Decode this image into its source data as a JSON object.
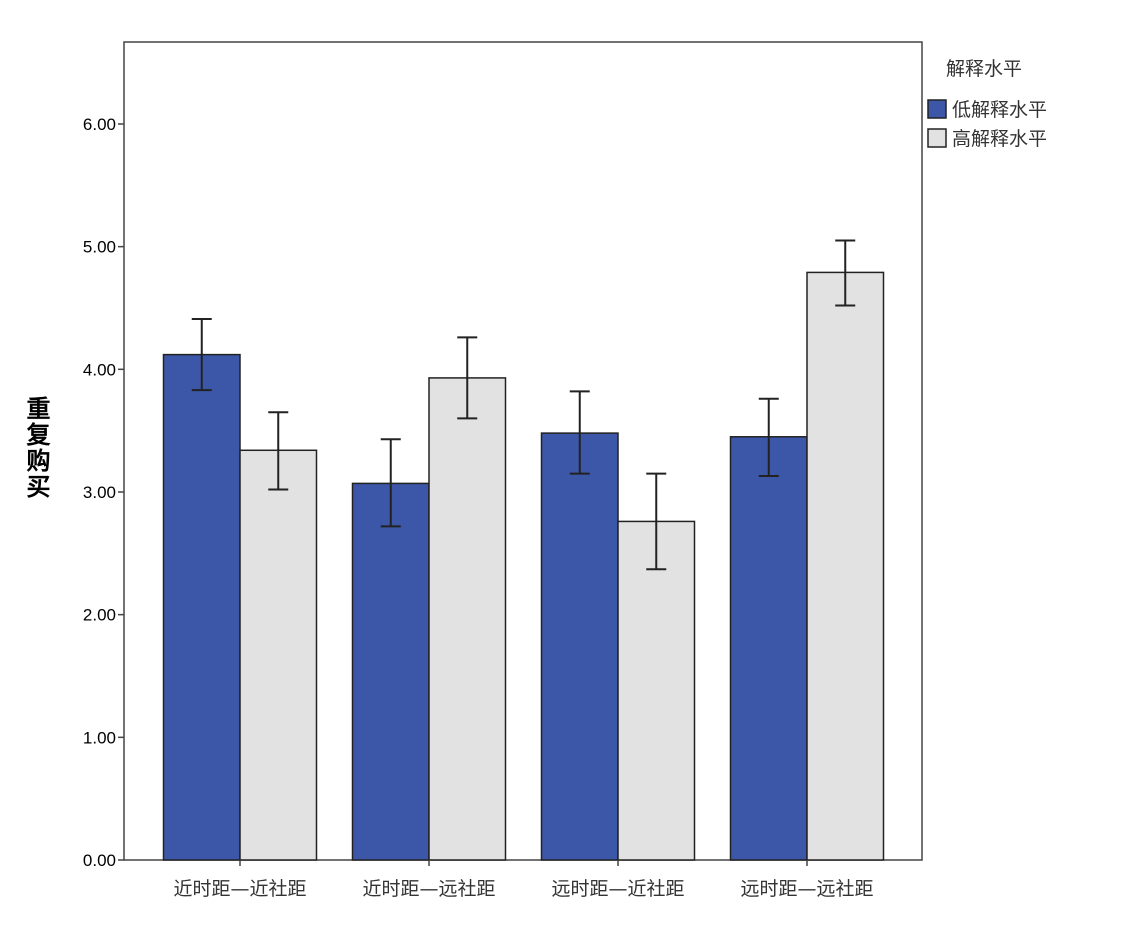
{
  "chart_data": {
    "type": "bar",
    "title": "",
    "xlabel": "",
    "ylabel": "重复购买",
    "ylim": [
      0,
      6.6
    ],
    "yticks": [
      "0.00",
      "1.00",
      "2.00",
      "3.00",
      "4.00",
      "5.00",
      "6.00"
    ],
    "categories": [
      "近时距—近社距",
      "近时距—远社距",
      "远时距—近社距",
      "远时距—远社距"
    ],
    "legend_title": "解释水平",
    "legend_position": "right",
    "series": [
      {
        "name": "低解释水平",
        "color": "#3c57a8",
        "values": [
          4.12,
          3.07,
          3.48,
          3.45
        ],
        "err_high": [
          4.41,
          3.43,
          3.82,
          3.76
        ],
        "err_low": [
          3.83,
          2.72,
          3.15,
          3.13
        ]
      },
      {
        "name": "高解释水平",
        "color": "#e2e2e2",
        "values": [
          3.34,
          3.93,
          2.76,
          4.79
        ],
        "err_high": [
          3.65,
          4.26,
          3.15,
          5.05
        ],
        "err_low": [
          3.02,
          3.6,
          2.37,
          4.52
        ]
      }
    ]
  }
}
